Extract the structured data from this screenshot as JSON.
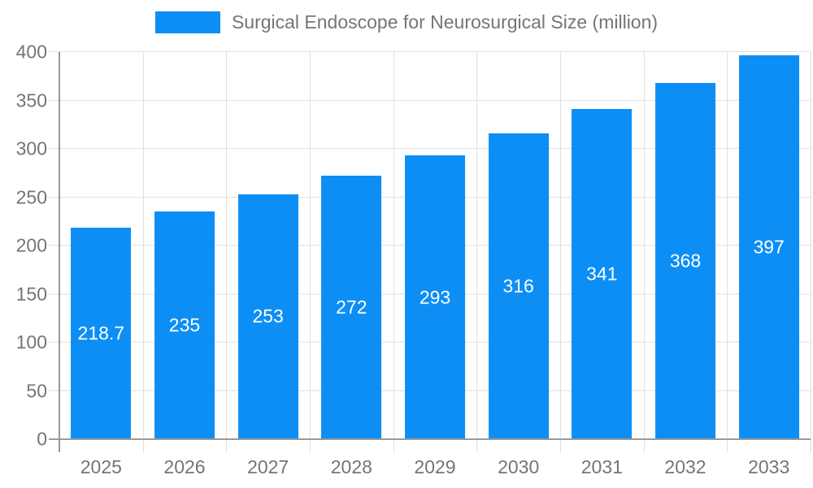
{
  "chart_data": {
    "type": "bar",
    "title": "Surgical Endoscope for Neurosurgical Size (million)",
    "categories": [
      "2025",
      "2026",
      "2027",
      "2028",
      "2029",
      "2030",
      "2031",
      "2032",
      "2033"
    ],
    "values": [
      218.7,
      235,
      253,
      272,
      293,
      316,
      341,
      368,
      397
    ],
    "bar_labels": [
      "218.7",
      "235",
      "253",
      "272",
      "293",
      "316",
      "341",
      "368",
      "397"
    ],
    "xlabel": "",
    "ylabel": "",
    "ylim": [
      0,
      400
    ],
    "yticks": [
      0,
      50,
      100,
      150,
      200,
      250,
      300,
      350,
      400
    ],
    "grid": true,
    "legend_position": "top-center",
    "colors": {
      "bar": "#0d8ef5",
      "bar_label_text": "#ffffff",
      "axis_text": "#757575",
      "axis_line": "#999999",
      "gridline": "#e0e0e0",
      "background": "#ffffff"
    }
  }
}
